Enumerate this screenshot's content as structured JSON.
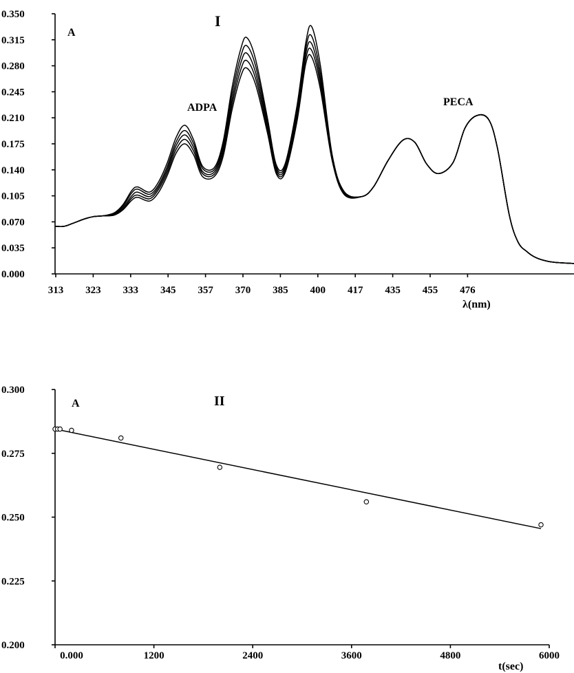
{
  "chart_data": [
    {
      "type": "line",
      "panel_label": "I",
      "ylabel": "A",
      "xlabel": "λ(nm)",
      "annotations": [
        "ADPA",
        "PECA"
      ],
      "xlim": [
        313,
        489
      ],
      "ylim": [
        0.0,
        0.35
      ],
      "x_ticks": [
        "313",
        "323",
        "333",
        "345",
        "357",
        "370",
        "385",
        "400",
        "417",
        "435",
        "455",
        "476"
      ],
      "y_ticks": [
        "0.350",
        "0.315",
        "0.280",
        "0.245",
        "0.210",
        "0.175",
        "0.140",
        "0.105",
        "0.070",
        "0.035",
        "0.000"
      ],
      "x": [
        313,
        316,
        319,
        323,
        326,
        329,
        333,
        336,
        339,
        341,
        345,
        348,
        351,
        354,
        357,
        360,
        363,
        367,
        370,
        373,
        376,
        378,
        381,
        385,
        388,
        391,
        395,
        398,
        400,
        403,
        407,
        411,
        417,
        421,
        426,
        431,
        435,
        439,
        443,
        448,
        452,
        456,
        460,
        463,
        467,
        470,
        473,
        476,
        480,
        484,
        489
      ],
      "series": [
        {
          "values": [
            0.064,
            0.064,
            0.068,
            0.074,
            0.077,
            0.078,
            0.082,
            0.093,
            0.112,
            0.117,
            0.11,
            0.123,
            0.149,
            0.183,
            0.2,
            0.18,
            0.145,
            0.143,
            0.178,
            0.25,
            0.303,
            0.318,
            0.289,
            0.21,
            0.147,
            0.148,
            0.225,
            0.31,
            0.333,
            0.28,
            0.16,
            0.111,
            0.104,
            0.117,
            0.153,
            0.18,
            0.177,
            0.148,
            0.135,
            0.15,
            0.196,
            0.213,
            0.208,
            0.17,
            0.08,
            0.043,
            0.03,
            0.022,
            0.017,
            0.015,
            0.014
          ]
        },
        {
          "values": [
            0.064,
            0.064,
            0.068,
            0.074,
            0.077,
            0.078,
            0.081,
            0.091,
            0.109,
            0.114,
            0.107,
            0.119,
            0.144,
            0.177,
            0.193,
            0.175,
            0.142,
            0.14,
            0.173,
            0.242,
            0.293,
            0.307,
            0.28,
            0.205,
            0.144,
            0.145,
            0.22,
            0.303,
            0.32,
            0.27,
            0.158,
            0.11,
            0.104,
            0.117,
            0.153,
            0.18,
            0.177,
            0.148,
            0.135,
            0.15,
            0.196,
            0.213,
            0.208,
            0.17,
            0.08,
            0.043,
            0.03,
            0.022,
            0.017,
            0.015,
            0.014
          ]
        },
        {
          "values": [
            0.064,
            0.064,
            0.068,
            0.074,
            0.077,
            0.078,
            0.08,
            0.089,
            0.105,
            0.11,
            0.104,
            0.116,
            0.14,
            0.172,
            0.187,
            0.17,
            0.138,
            0.137,
            0.168,
            0.234,
            0.284,
            0.297,
            0.271,
            0.2,
            0.141,
            0.142,
            0.214,
            0.296,
            0.31,
            0.262,
            0.156,
            0.109,
            0.104,
            0.117,
            0.153,
            0.18,
            0.177,
            0.148,
            0.135,
            0.15,
            0.196,
            0.213,
            0.208,
            0.17,
            0.08,
            0.043,
            0.03,
            0.022,
            0.017,
            0.015,
            0.014
          ]
        },
        {
          "values": [
            0.064,
            0.064,
            0.068,
            0.074,
            0.077,
            0.078,
            0.079,
            0.087,
            0.102,
            0.106,
            0.101,
            0.113,
            0.136,
            0.167,
            0.181,
            0.165,
            0.135,
            0.134,
            0.163,
            0.227,
            0.275,
            0.287,
            0.263,
            0.195,
            0.138,
            0.139,
            0.209,
            0.289,
            0.301,
            0.255,
            0.154,
            0.108,
            0.104,
            0.117,
            0.153,
            0.18,
            0.177,
            0.148,
            0.135,
            0.15,
            0.196,
            0.213,
            0.208,
            0.17,
            0.08,
            0.043,
            0.03,
            0.022,
            0.017,
            0.015,
            0.014
          ]
        },
        {
          "values": [
            0.064,
            0.064,
            0.068,
            0.074,
            0.077,
            0.078,
            0.079,
            0.086,
            0.099,
            0.103,
            0.098,
            0.109,
            0.132,
            0.162,
            0.175,
            0.16,
            0.131,
            0.131,
            0.158,
            0.22,
            0.266,
            0.277,
            0.255,
            0.19,
            0.135,
            0.136,
            0.204,
            0.282,
            0.292,
            0.248,
            0.152,
            0.107,
            0.104,
            0.117,
            0.153,
            0.18,
            0.177,
            0.148,
            0.135,
            0.15,
            0.196,
            0.213,
            0.208,
            0.17,
            0.08,
            0.043,
            0.03,
            0.022,
            0.017,
            0.015,
            0.014
          ]
        }
      ]
    },
    {
      "type": "scatter",
      "panel_label": "II",
      "ylabel": "A",
      "xlabel": "t(sec)",
      "xlim": [
        0,
        6000
      ],
      "ylim": [
        0.2,
        0.3
      ],
      "x_ticks": [
        "0.000",
        "1200",
        "2400",
        "3600",
        "4800",
        "6000"
      ],
      "y_ticks": [
        "0.300",
        "0.275",
        "0.250",
        "0.225",
        "0.200"
      ],
      "points": [
        {
          "x": 0,
          "y": 0.2845
        },
        {
          "x": 30,
          "y": 0.2845
        },
        {
          "x": 60,
          "y": 0.2845
        },
        {
          "x": 200,
          "y": 0.284
        },
        {
          "x": 800,
          "y": 0.281
        },
        {
          "x": 2000,
          "y": 0.2695
        },
        {
          "x": 3780,
          "y": 0.256
        },
        {
          "x": 5900,
          "y": 0.247
        }
      ],
      "fit_line": {
        "x": [
          0,
          5900
        ],
        "y": [
          0.2845,
          0.2455
        ]
      }
    }
  ]
}
